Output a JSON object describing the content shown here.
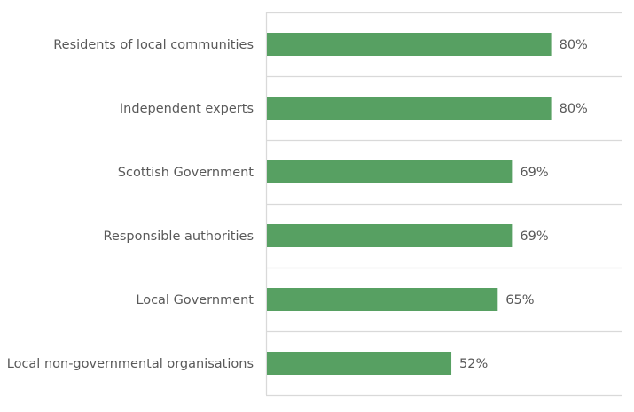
{
  "chart_data": {
    "type": "bar",
    "orientation": "horizontal",
    "categories": [
      "Residents of local communities",
      "Independent experts",
      "Scottish Government",
      "Responsible authorities",
      "Local Government",
      "Local non-governmental organisations"
    ],
    "values": [
      80,
      80,
      69,
      69,
      65,
      52
    ],
    "data_labels": [
      "80%",
      "80%",
      "69%",
      "69%",
      "65%",
      "52%"
    ],
    "title": "",
    "xlabel": "",
    "ylabel": "",
    "xlim": [
      0,
      100
    ],
    "grid": "horizontal separators between categories",
    "legend": "none",
    "colors": {
      "bar": "#57A062",
      "grid": "#D9D9D9",
      "text": "#595959"
    }
  }
}
